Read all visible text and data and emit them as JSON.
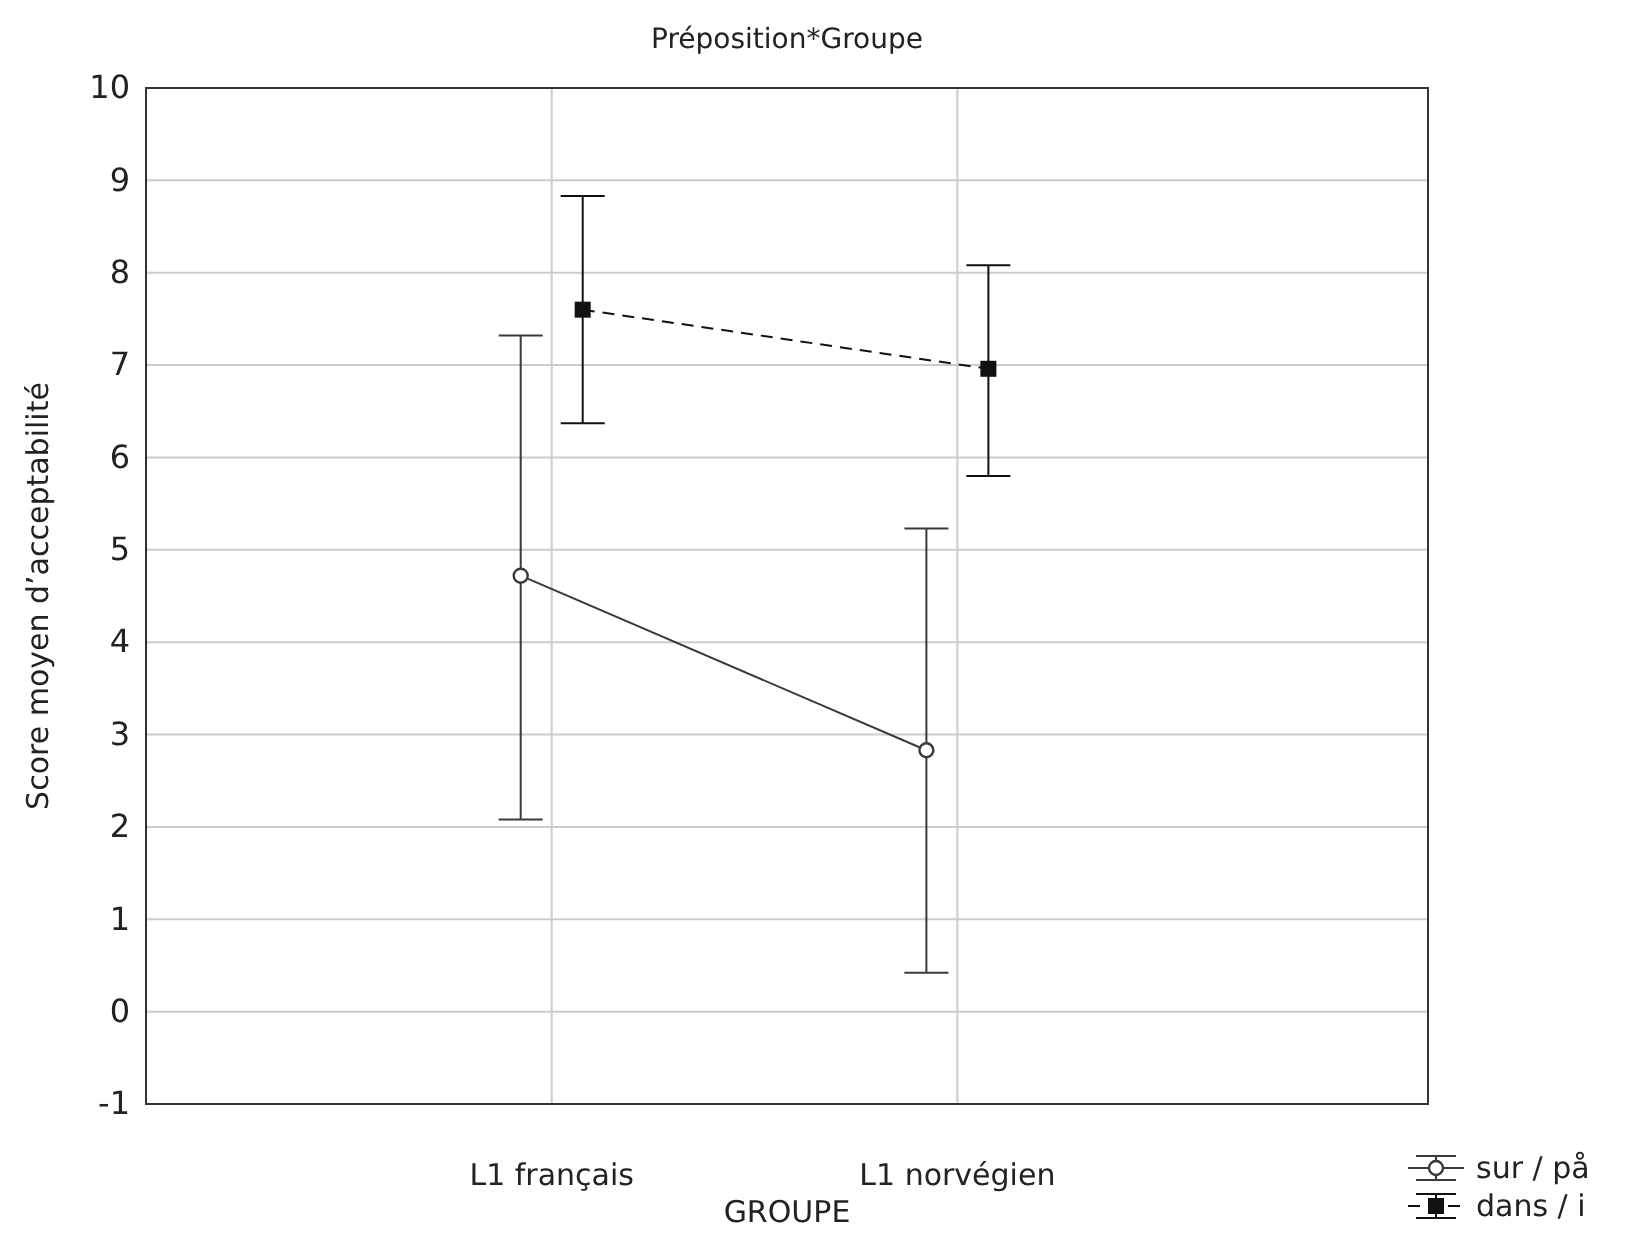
{
  "chart_data": {
    "type": "line",
    "title": "Préposition*Groupe",
    "xlabel": "GROUPE",
    "ylabel": "Score moyen d’acceptabilité",
    "categories": [
      "L1 français",
      "L1 norvégien"
    ],
    "series": [
      {
        "name": "sur / på",
        "color": "#3a3a3a",
        "values": [
          4.72,
          2.83
        ],
        "errors": [
          [
            2.08,
            7.32
          ],
          [
            0.42,
            5.23
          ]
        ],
        "marker": "circle",
        "line_style": "solid"
      },
      {
        "name": "dans / i",
        "color": "#111111",
        "values": [
          7.6,
          6.96
        ],
        "errors": [
          [
            6.37,
            8.83
          ],
          [
            5.8,
            8.08
          ]
        ],
        "marker": "square",
        "line_style": "dashed"
      }
    ],
    "ylim": [
      -1,
      10
    ],
    "yticks": [
      -1,
      0,
      1,
      2,
      3,
      4,
      5,
      6,
      7,
      8,
      9,
      10
    ],
    "grid": true,
    "legend": "bottom right"
  }
}
